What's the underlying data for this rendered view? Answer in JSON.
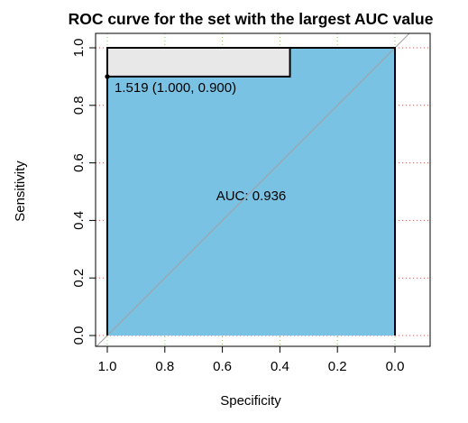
{
  "chart_data": {
    "type": "area",
    "title": "ROC curve for the set with the largest AUC value",
    "xlabel": "Specificity",
    "ylabel": "Sensitivity",
    "xlim": [
      1.0,
      0.0
    ],
    "ylim": [
      0.0,
      1.0
    ],
    "x_ticks": [
      1.0,
      0.8,
      0.6,
      0.4,
      0.2,
      0.0
    ],
    "x_tick_labels": [
      "1.0",
      "0.8",
      "0.6",
      "0.4",
      "0.2",
      "0.0"
    ],
    "y_ticks": [
      0.0,
      0.2,
      0.4,
      0.6,
      0.8,
      1.0
    ],
    "y_tick_labels": [
      "0.0",
      "0.2",
      "0.4",
      "0.6",
      "0.8",
      "1.0"
    ],
    "grid": true,
    "series": [
      {
        "specificity": [
          1.0,
          1.0,
          0.365,
          0.365,
          0.0
        ],
        "sensitivity": [
          0.0,
          1.0,
          1.0,
          0.9,
          1.0
        ]
      }
    ],
    "roc_curve": {
      "specificity": [
        1.0,
        1.0,
        0.0
      ],
      "sensitivity": [
        0.0,
        1.0,
        1.0
      ]
    },
    "ci_box": {
      "specificity": [
        1.0,
        0.365
      ],
      "sensitivity": [
        0.9,
        1.0
      ]
    },
    "reference_line": {
      "specificity": [
        1.0,
        0.0
      ],
      "sensitivity": [
        0.0,
        1.0
      ]
    },
    "best_threshold": {
      "specificity": 1.0,
      "sensitivity": 0.9,
      "label": "1.519 (1.000, 0.900)"
    },
    "auc_label": {
      "specificity": 0.5,
      "sensitivity": 0.47,
      "text": "AUC: 0.936"
    },
    "colors": {
      "auc_fill": "#7ac2e4",
      "ci_fill": "#e8e8e8",
      "curve": "#000000",
      "reference_line": "#a0a0a0",
      "grid_horizontal": "#e05050",
      "grid_vertical": "#90d050",
      "axis": "#000000"
    }
  }
}
